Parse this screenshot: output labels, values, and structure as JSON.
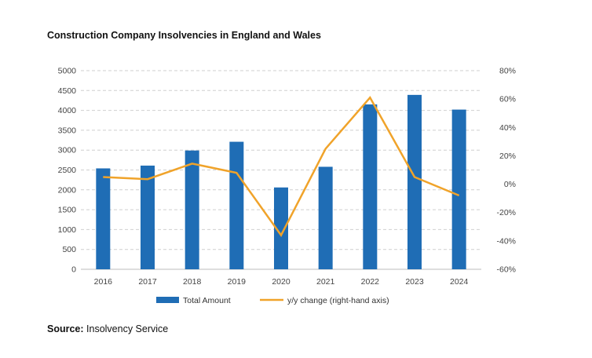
{
  "chart_data": {
    "type": "bar",
    "title": "Construction Company Insolvencies in England and Wales",
    "categories": [
      "2016",
      "2017",
      "2018",
      "2019",
      "2020",
      "2021",
      "2022",
      "2023",
      "2024"
    ],
    "series": [
      {
        "name": "Total Amount",
        "type": "bar",
        "axis": "left",
        "color": "#1f6db5",
        "values": [
          2540,
          2610,
          2990,
          3210,
          2060,
          2580,
          4150,
          4390,
          4020
        ]
      },
      {
        "name": "y/y change (right-hand axis)",
        "type": "line",
        "axis": "right",
        "color": "#f0a32a",
        "values": [
          5,
          3.5,
          14.5,
          8,
          -36,
          25,
          61,
          5,
          -8
        ]
      }
    ],
    "left_axis": {
      "ylim": [
        0,
        5000
      ],
      "ticks": [
        "0",
        "500",
        "1000",
        "1500",
        "2000",
        "2500",
        "3000",
        "3500",
        "4000",
        "4500",
        "5000"
      ]
    },
    "right_axis": {
      "ylim": [
        -60,
        80
      ],
      "ticks": [
        "-60%",
        "-40%",
        "-20%",
        "0%",
        "20%",
        "40%",
        "60%",
        "80%"
      ]
    },
    "grid": true,
    "legend": "bottom"
  },
  "source": {
    "label": "Source:",
    "text": "Insolvency Service"
  }
}
